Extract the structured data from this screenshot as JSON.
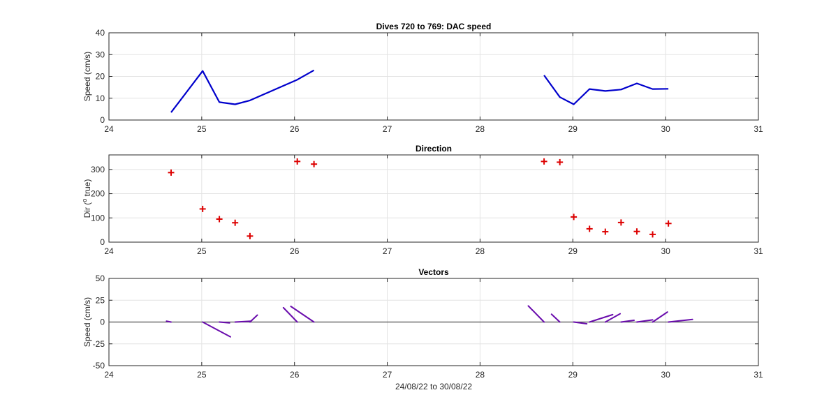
{
  "chart_data": [
    {
      "type": "line",
      "title": "Dives 720 to 769: DAC speed",
      "xlabel": "",
      "ylabel": "Speed (cm/s)",
      "xlim": [
        24,
        31
      ],
      "ylim": [
        0,
        40
      ],
      "xticks": [
        "24",
        "25",
        "26",
        "27",
        "28",
        "29",
        "30",
        "31"
      ],
      "yticks": [
        "0",
        "10",
        "20",
        "30",
        "40"
      ],
      "grid": true,
      "color": "#0000cc",
      "segments": [
        [
          [
            24.67,
            3.5
          ],
          [
            25.01,
            22.5
          ],
          [
            25.19,
            8.2
          ],
          [
            25.36,
            7.2
          ],
          [
            25.52,
            9.0
          ],
          [
            26.03,
            18.5
          ],
          [
            26.21,
            22.8
          ]
        ],
        [
          [
            28.69,
            20.5
          ],
          [
            28.86,
            10.5
          ],
          [
            29.01,
            7.2
          ],
          [
            29.18,
            14.2
          ],
          [
            29.35,
            13.3
          ],
          [
            29.52,
            14.0
          ],
          [
            29.69,
            16.8
          ],
          [
            29.86,
            14.2
          ],
          [
            30.03,
            14.3
          ]
        ]
      ]
    },
    {
      "type": "scatter",
      "title": "Direction",
      "xlabel": "",
      "ylabel": "Dir (o true)",
      "ylabel_parts": [
        "Dir (",
        "o",
        " true)"
      ],
      "xlim": [
        24,
        31
      ],
      "ylim": [
        0,
        360
      ],
      "xticks": [
        "24",
        "25",
        "26",
        "27",
        "28",
        "29",
        "30",
        "31"
      ],
      "yticks": [
        "0",
        "100",
        "200",
        "300"
      ],
      "grid": true,
      "marker": "+",
      "color": "#dd0000",
      "points": [
        [
          24.67,
          287
        ],
        [
          25.01,
          137
        ],
        [
          25.19,
          95
        ],
        [
          25.36,
          80
        ],
        [
          25.52,
          25
        ],
        [
          26.03,
          333
        ],
        [
          26.21,
          322
        ],
        [
          28.69,
          333
        ],
        [
          28.86,
          330
        ],
        [
          29.01,
          104
        ],
        [
          29.18,
          55
        ],
        [
          29.35,
          43
        ],
        [
          29.52,
          81
        ],
        [
          29.69,
          44
        ],
        [
          29.86,
          32
        ],
        [
          30.03,
          77
        ]
      ]
    },
    {
      "type": "vector",
      "title": "Vectors",
      "xlabel": "24/08/22 to 30/08/22",
      "ylabel": "Speed (cm/s)",
      "xlim": [
        24,
        31
      ],
      "ylim": [
        -50,
        50
      ],
      "xticks": [
        "24",
        "25",
        "26",
        "27",
        "28",
        "29",
        "30",
        "31"
      ],
      "yticks": [
        "-50",
        "-25",
        "0",
        "25",
        "50"
      ],
      "grid": true,
      "zero_line": true,
      "color": "#6a0dad",
      "vectors": [
        [
          24.67,
          0,
          -0.05,
          1.0
        ],
        [
          25.01,
          0,
          0.3,
          -17.0
        ],
        [
          25.19,
          0,
          0.11,
          -1.0
        ],
        [
          25.36,
          0,
          0.17,
          1.0
        ],
        [
          25.52,
          0,
          0.08,
          8.0
        ],
        [
          26.03,
          0,
          -0.15,
          16.5
        ],
        [
          26.21,
          0,
          -0.25,
          18.0
        ],
        [
          28.69,
          0,
          -0.17,
          18.5
        ],
        [
          28.86,
          0,
          -0.09,
          9.0
        ],
        [
          29.01,
          0,
          0.14,
          -2.0
        ],
        [
          29.18,
          0,
          0.25,
          8.5
        ],
        [
          29.35,
          0,
          0.16,
          9.5
        ],
        [
          29.52,
          0,
          0.14,
          2.0
        ],
        [
          29.69,
          0,
          0.17,
          2.5
        ],
        [
          29.86,
          0,
          0.16,
          11.5
        ],
        [
          30.03,
          0,
          0.26,
          3.0
        ]
      ]
    }
  ]
}
